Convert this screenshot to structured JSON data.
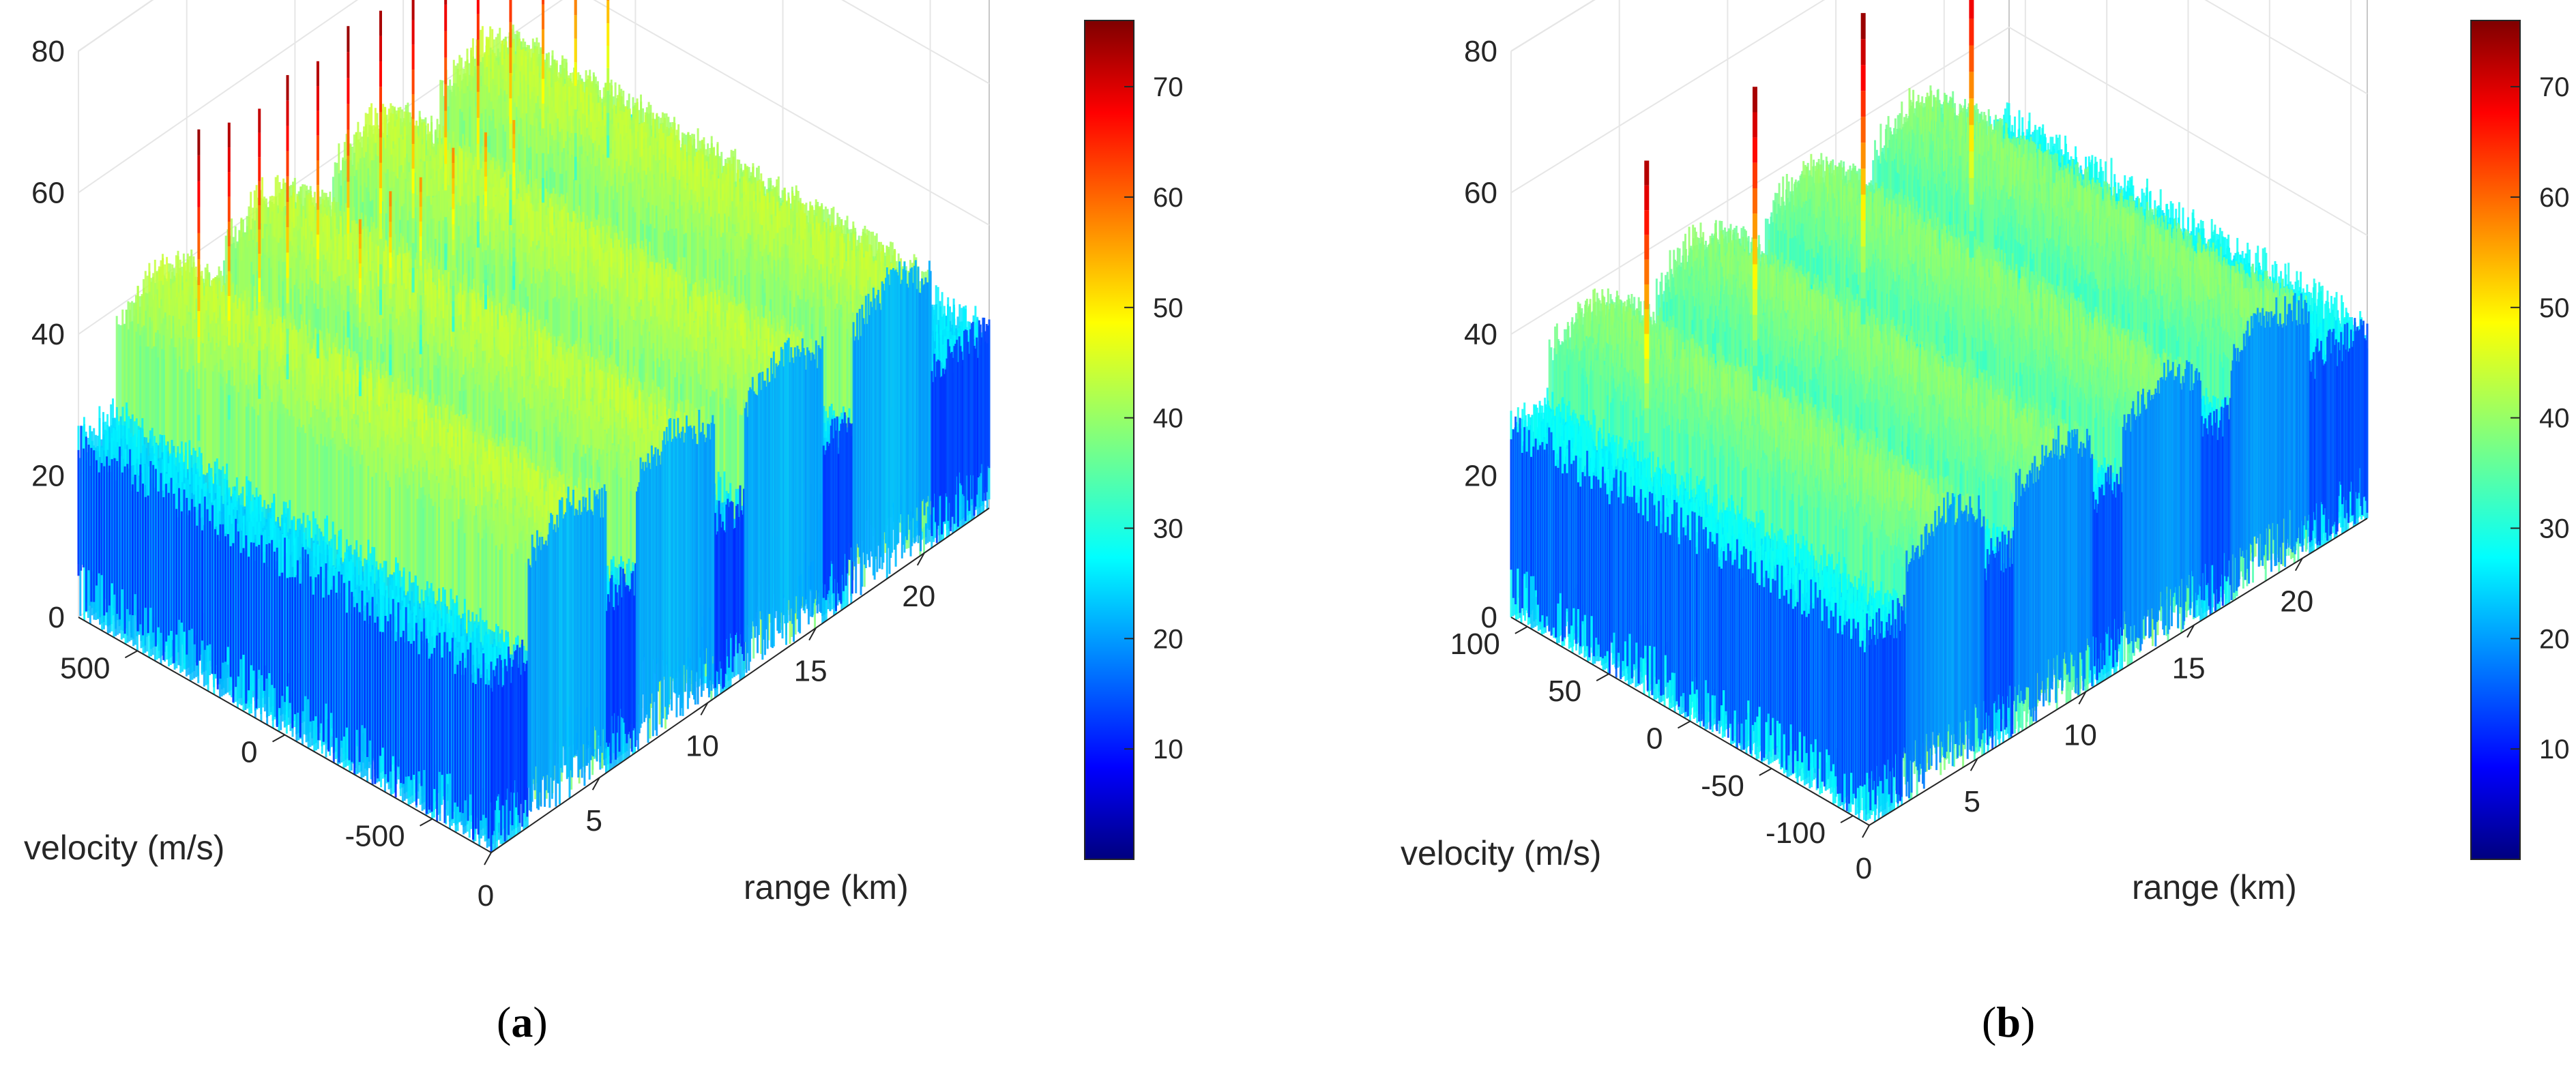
{
  "chart_data": [
    {
      "type": "surface",
      "panel_label": "a",
      "xlabel": "range (km)",
      "ylabel": "velocity (m/s)",
      "zlabel": "",
      "xticks": [
        "0",
        "5",
        "10",
        "15",
        "20"
      ],
      "yticks": [
        "-500",
        "0",
        "500"
      ],
      "zticks": [
        "0",
        "20",
        "40",
        "60",
        "80"
      ],
      "xlim": [
        0,
        23
      ],
      "ylim": [
        -700,
        700
      ],
      "zlim": [
        0,
        80
      ],
      "colorbar": {
        "ticks": [
          "10",
          "20",
          "30",
          "40",
          "50",
          "60",
          "70"
        ],
        "range": [
          0,
          76
        ],
        "colormap": "jet"
      },
      "grid": true,
      "clutter_ridges": [
        {
          "range_km": 3.5,
          "level": 42
        },
        {
          "range_km": 8.5,
          "level": 42
        },
        {
          "range_km": 13.5,
          "level": 42
        },
        {
          "range_km": 18.5,
          "level": 42
        }
      ],
      "noise_floor": 25,
      "target_peaks": [
        {
          "range_km": 1.2,
          "velocity": 380,
          "value": 74
        },
        {
          "range_km": 2.6,
          "velocity": 380,
          "value": 72
        },
        {
          "range_km": 4.0,
          "velocity": 380,
          "value": 71
        },
        {
          "range_km": 5.3,
          "velocity": 380,
          "value": 73
        },
        {
          "range_km": 6.7,
          "velocity": 380,
          "value": 72
        },
        {
          "range_km": 8.1,
          "velocity": 380,
          "value": 74
        },
        {
          "range_km": 9.6,
          "velocity": 380,
          "value": 73
        },
        {
          "range_km": 11.1,
          "velocity": 380,
          "value": 72
        },
        {
          "range_km": 12.6,
          "velocity": 380,
          "value": 75
        },
        {
          "range_km": 14.1,
          "velocity": 380,
          "value": 74
        },
        {
          "range_km": 15.6,
          "velocity": 380,
          "value": 73
        },
        {
          "range_km": 17.1,
          "velocity": 380,
          "value": 72
        },
        {
          "range_km": 18.6,
          "velocity": 380,
          "value": 70
        },
        {
          "range_km": 20.1,
          "velocity": 380,
          "value": 68
        },
        {
          "range_km": 6.2,
          "velocity": 200,
          "value": 55
        },
        {
          "range_km": 7.6,
          "velocity": 200,
          "value": 56
        },
        {
          "range_km": 9.0,
          "velocity": 200,
          "value": 55
        },
        {
          "range_km": 10.5,
          "velocity": 200,
          "value": 56
        },
        {
          "range_km": 12.0,
          "velocity": 200,
          "value": 55
        },
        {
          "range_km": 13.3,
          "velocity": 200,
          "value": 54
        }
      ]
    },
    {
      "type": "surface",
      "panel_label": "b",
      "xlabel": "range (km)",
      "ylabel": "velocity (m/s)",
      "zlabel": "",
      "xticks": [
        "0",
        "5",
        "10",
        "15",
        "20"
      ],
      "yticks": [
        "-100",
        "-50",
        "0",
        "50",
        "100"
      ],
      "zticks": [
        "0",
        "20",
        "40",
        "60",
        "80"
      ],
      "xlim": [
        0,
        23
      ],
      "ylim": [
        -110,
        110
      ],
      "zlim": [
        0,
        80
      ],
      "colorbar": {
        "ticks": [
          "10",
          "20",
          "30",
          "40",
          "50",
          "60",
          "70"
        ],
        "range": [
          0,
          76
        ],
        "colormap": "jet"
      },
      "grid": true,
      "clutter_ridges": [
        {
          "range_km": 3.5,
          "level": 38
        },
        {
          "range_km": 8.5,
          "level": 38
        },
        {
          "range_km": 13.5,
          "level": 38
        },
        {
          "range_km": 18.5,
          "level": 38
        }
      ],
      "noise_floor": 27,
      "target_peaks": [
        {
          "range_km": 1.0,
          "velocity": 40,
          "value": 72
        },
        {
          "range_km": 6.0,
          "velocity": 40,
          "value": 73
        },
        {
          "range_km": 11.0,
          "velocity": 40,
          "value": 74
        },
        {
          "range_km": 16.0,
          "velocity": 40,
          "value": 75
        }
      ]
    }
  ]
}
